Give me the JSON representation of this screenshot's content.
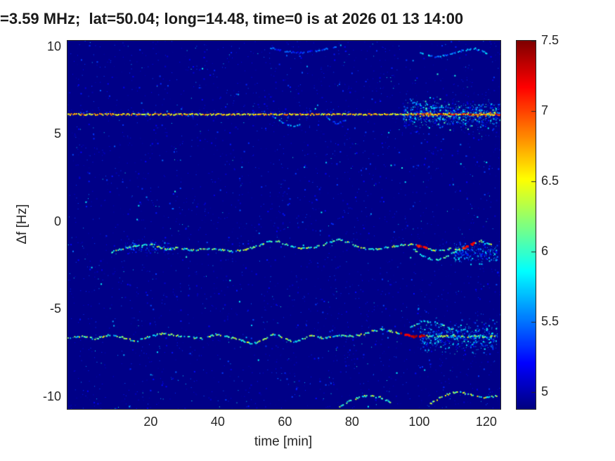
{
  "figure": {
    "background": "#ffffff",
    "axis_text_color": "#262626"
  },
  "chart_data": {
    "type": "heatmap",
    "title": "=3.59 MHz;  lat=50.04; long=14.48, time=0 is at 2026 01 13 14:00",
    "xlabel": "time [min]",
    "ylabel": "Δf [Hz]",
    "xlim": [
      -5,
      124
    ],
    "ylim": [
      -10.7,
      10.35
    ],
    "x_ticks": [
      20,
      40,
      60,
      80,
      100,
      120
    ],
    "y_ticks": [
      -10,
      -5,
      0,
      5,
      10
    ],
    "grid": false,
    "colorbar": {
      "min": 4.88,
      "max": 7.5,
      "ticks": [
        5,
        5.5,
        6,
        6.5,
        7,
        7.5
      ],
      "colormap": "jet",
      "position": "right"
    },
    "background_value": 4.9,
    "features": [
      {
        "id": "noise-floor",
        "kind": "noise",
        "n": 2800,
        "value_range": [
          4.92,
          5.4
        ]
      },
      {
        "id": "noise-sparse",
        "kind": "noise",
        "n": 380,
        "value_range": [
          5.35,
          6.0
        ]
      },
      {
        "id": "cloud-carrier-band",
        "kind": "cloud",
        "t0": -5,
        "t1": 124,
        "f0": 5.9,
        "f1": 6.5,
        "n": 220,
        "value_range": [
          4.95,
          5.5
        ]
      },
      {
        "id": "cloud-carrier-right",
        "kind": "cloud",
        "t0": 95,
        "t1": 124,
        "f0": 5.0,
        "f1": 7.35,
        "n": 800,
        "value_range": [
          4.95,
          6.1
        ]
      },
      {
        "id": "cloud-lower-right",
        "kind": "cloud",
        "t0": 100,
        "t1": 123,
        "f0": -7.8,
        "f1": -5.3,
        "n": 550,
        "value_range": [
          4.95,
          6.0
        ]
      },
      {
        "id": "cloud-upper-right",
        "kind": "cloud",
        "t0": 110,
        "t1": 123,
        "f0": -2.6,
        "f1": -0.9,
        "n": 260,
        "value_range": [
          4.95,
          5.9
        ]
      },
      {
        "id": "cloud-upper-left",
        "kind": "cloud",
        "t0": 12,
        "t1": 26,
        "f0": -2.0,
        "f1": -0.9,
        "n": 120,
        "value_range": [
          4.95,
          5.7
        ]
      },
      {
        "id": "top-faint-trace-1",
        "kind": "trace",
        "value_range": [
          5.1,
          5.6
        ],
        "points": [
          [
            55,
            10.0
          ],
          [
            60,
            9.75
          ],
          [
            65,
            9.7
          ],
          [
            70,
            9.85
          ],
          [
            75,
            10.05
          ]
        ]
      },
      {
        "id": "top-faint-trace-2",
        "kind": "trace",
        "value_range": [
          5.3,
          5.9
        ],
        "points": [
          [
            100,
            9.7
          ],
          [
            104,
            9.45
          ],
          [
            108,
            9.6
          ],
          [
            112,
            9.8
          ],
          [
            116,
            9.95
          ],
          [
            120,
            9.65
          ]
        ]
      },
      {
        "id": "branch-below-carrier-1",
        "kind": "trace",
        "value_range": [
          5.2,
          5.9
        ],
        "points": [
          [
            56,
            6.05
          ],
          [
            59,
            5.7
          ],
          [
            62,
            5.5
          ],
          [
            65,
            5.65
          ]
        ]
      },
      {
        "id": "branch-below-carrier-2",
        "kind": "trace",
        "value_range": [
          5.15,
          5.7
        ],
        "points": [
          [
            72,
            6.0
          ],
          [
            75,
            5.65
          ],
          [
            78,
            5.85
          ]
        ]
      },
      {
        "id": "bottom-arc-1",
        "kind": "trace",
        "value_range": [
          5.7,
          6.5
        ],
        "points": [
          [
            76,
            -10.5
          ],
          [
            80,
            -10.1
          ],
          [
            84,
            -9.9
          ],
          [
            88,
            -10.0
          ],
          [
            92,
            -10.35
          ]
        ]
      },
      {
        "id": "bottom-arc-2",
        "kind": "trace",
        "value_range": [
          5.7,
          6.6
        ],
        "points": [
          [
            103,
            -10.35
          ],
          [
            107,
            -9.9
          ],
          [
            111,
            -9.65
          ],
          [
            115,
            -9.85
          ],
          [
            119,
            -10.05
          ],
          [
            123,
            -9.9
          ]
        ]
      },
      {
        "id": "doppler-trace-upper-loop",
        "kind": "trace",
        "value_range": [
          5.5,
          6.3
        ],
        "points": [
          [
            98,
            -1.55
          ],
          [
            101,
            -1.95
          ],
          [
            104,
            -2.15
          ],
          [
            107,
            -2.05
          ],
          [
            110,
            -1.7
          ],
          [
            112,
            -1.55
          ]
        ]
      },
      {
        "id": "doppler-trace-lower-loop",
        "kind": "trace",
        "value_range": [
          5.5,
          6.3
        ],
        "points": [
          [
            97,
            -5.95
          ],
          [
            101,
            -5.65
          ],
          [
            105,
            -5.75
          ],
          [
            108,
            -6.0
          ],
          [
            111,
            -6.2
          ]
        ]
      },
      {
        "id": "doppler-trace-upper",
        "kind": "trace",
        "value_range": [
          5.6,
          6.5
        ],
        "hot_spots": [
          {
            "t0": 99,
            "t1": 102,
            "v": 7.2
          },
          {
            "t0": 112,
            "t1": 116,
            "v": 7.15
          }
        ],
        "points": [
          [
            8,
            -1.7
          ],
          [
            12,
            -1.45
          ],
          [
            16,
            -1.3
          ],
          [
            20,
            -1.25
          ],
          [
            24,
            -1.55
          ],
          [
            28,
            -1.45
          ],
          [
            32,
            -1.6
          ],
          [
            36,
            -1.5
          ],
          [
            40,
            -1.55
          ],
          [
            44,
            -1.65
          ],
          [
            48,
            -1.55
          ],
          [
            52,
            -1.3
          ],
          [
            55,
            -1.05
          ],
          [
            58,
            -1.1
          ],
          [
            61,
            -1.35
          ],
          [
            64,
            -1.5
          ],
          [
            67,
            -1.45
          ],
          [
            70,
            -1.35
          ],
          [
            73,
            -1.15
          ],
          [
            76,
            -0.95
          ],
          [
            79,
            -1.2
          ],
          [
            82,
            -1.45
          ],
          [
            85,
            -1.55
          ],
          [
            88,
            -1.5
          ],
          [
            91,
            -1.4
          ],
          [
            94,
            -1.3
          ],
          [
            97,
            -1.25
          ],
          [
            100,
            -1.35
          ],
          [
            103,
            -1.55
          ],
          [
            106,
            -1.6
          ],
          [
            109,
            -1.5
          ],
          [
            112,
            -1.55
          ],
          [
            115,
            -1.25
          ],
          [
            118,
            -1.05
          ],
          [
            122,
            -1.35
          ]
        ]
      },
      {
        "id": "doppler-trace-lower",
        "kind": "trace",
        "value_range": [
          5.6,
          6.5
        ],
        "hot_spots": [
          {
            "t0": 94,
            "t1": 101,
            "v": 7.3
          }
        ],
        "points": [
          [
            -5,
            -6.6
          ],
          [
            -1,
            -6.5
          ],
          [
            3,
            -6.65
          ],
          [
            7,
            -6.45
          ],
          [
            11,
            -6.55
          ],
          [
            15,
            -6.8
          ],
          [
            19,
            -6.55
          ],
          [
            23,
            -6.35
          ],
          [
            27,
            -6.45
          ],
          [
            31,
            -6.55
          ],
          [
            35,
            -6.65
          ],
          [
            39,
            -6.4
          ],
          [
            43,
            -6.55
          ],
          [
            47,
            -6.75
          ],
          [
            50,
            -6.95
          ],
          [
            53,
            -6.7
          ],
          [
            56,
            -6.4
          ],
          [
            59,
            -6.55
          ],
          [
            62,
            -6.85
          ],
          [
            65,
            -6.65
          ],
          [
            68,
            -6.45
          ],
          [
            71,
            -6.6
          ],
          [
            74,
            -6.55
          ],
          [
            77,
            -6.45
          ],
          [
            80,
            -6.5
          ],
          [
            83,
            -6.4
          ],
          [
            86,
            -6.2
          ],
          [
            89,
            -6.1
          ],
          [
            92,
            -6.25
          ],
          [
            95,
            -6.4
          ],
          [
            98,
            -6.5
          ],
          [
            101,
            -6.45
          ],
          [
            104,
            -6.55
          ],
          [
            107,
            -6.5
          ],
          [
            110,
            -6.45
          ],
          [
            113,
            -6.55
          ],
          [
            116,
            -6.5
          ],
          [
            119,
            -6.55
          ],
          [
            123,
            -6.5
          ]
        ]
      },
      {
        "id": "carrier-line",
        "kind": "hline",
        "f": 6.18,
        "t0": -5,
        "t1": 124,
        "value_range": [
          6.25,
          6.95
        ],
        "hot": {
          "t0": 99,
          "t1": 124,
          "value_range": [
            6.9,
            7.5
          ]
        }
      }
    ]
  }
}
